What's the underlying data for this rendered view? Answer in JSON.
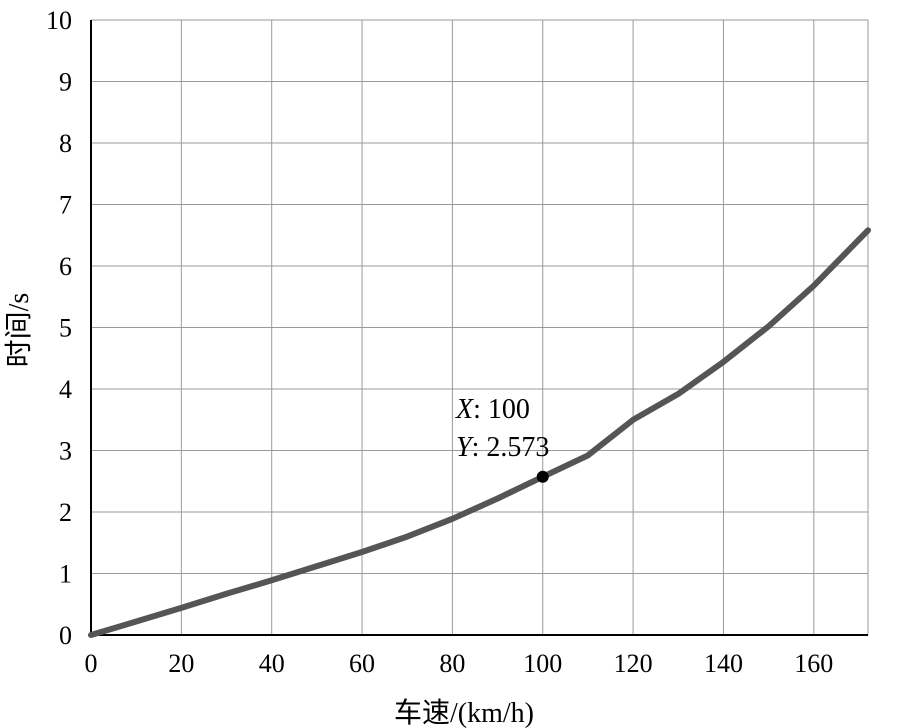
{
  "chart_data": {
    "type": "line",
    "xlabel": "车速/(km/h)",
    "ylabel": "时间/s",
    "xlim": [
      0,
      172
    ],
    "ylim": [
      0,
      10
    ],
    "xticks": [
      0,
      20,
      40,
      60,
      80,
      100,
      120,
      140,
      160
    ],
    "yticks": [
      0,
      1,
      2,
      3,
      4,
      5,
      6,
      7,
      8,
      9,
      10
    ],
    "x_grid_lines": [
      0,
      20,
      40,
      60,
      80,
      100,
      120,
      140,
      160,
      172
    ],
    "grid": true,
    "line_color": "#555555",
    "series": [
      {
        "x": [
          0,
          10,
          20,
          30,
          40,
          50,
          60,
          70,
          80,
          90,
          100,
          110,
          120,
          130,
          140,
          150,
          160,
          172
        ],
        "y": [
          0,
          0.22,
          0.44,
          0.67,
          0.89,
          1.12,
          1.35,
          1.6,
          1.89,
          2.22,
          2.573,
          2.92,
          3.5,
          3.92,
          4.44,
          5.02,
          5.68,
          6.58
        ]
      }
    ],
    "annotation": {
      "x": 100,
      "y": 2.573,
      "x_key": "X",
      "x_value": ": 100",
      "y_key": "Y",
      "y_value": ": 2.573"
    }
  }
}
